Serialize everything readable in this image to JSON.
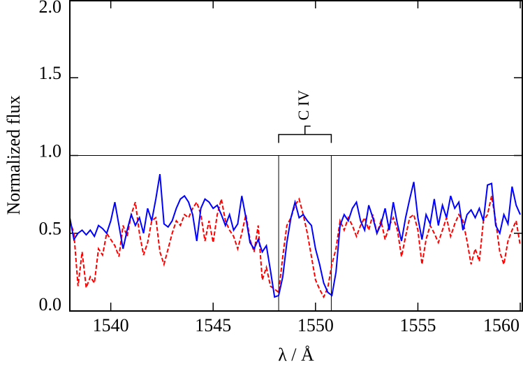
{
  "chart_data": {
    "type": "line",
    "xlabel": "λ / Å",
    "ylabel": "Normalized flux",
    "xlim": [
      1538,
      1560.1
    ],
    "ylim": [
      0,
      2
    ],
    "xticks": [
      1540,
      1545,
      1550,
      1555,
      1560
    ],
    "yticks": [
      {
        "value": 0,
        "label": "0.0"
      },
      {
        "value": 0.5,
        "label": "0.5"
      },
      {
        "value": 1,
        "label": "1.0"
      },
      {
        "value": 1.5,
        "label": "1.5"
      },
      {
        "value": 2,
        "label": "2.0"
      }
    ],
    "hline": 1.0,
    "annotations": [
      {
        "text": "C IV",
        "x": [
          1548.2,
          1550.77
        ]
      }
    ],
    "x": [
      1538,
      1538.2,
      1538.4,
      1538.6,
      1538.8,
      1539,
      1539.2,
      1539.4,
      1539.6,
      1539.8,
      1540,
      1540.2,
      1540.4,
      1540.6,
      1540.8,
      1541,
      1541.2,
      1541.4,
      1541.6,
      1541.8,
      1542,
      1542.2,
      1542.4,
      1542.6,
      1542.8,
      1543,
      1543.2,
      1543.4,
      1543.6,
      1543.8,
      1544,
      1544.2,
      1544.4,
      1544.6,
      1544.8,
      1545,
      1545.2,
      1545.4,
      1545.6,
      1545.8,
      1546,
      1546.2,
      1546.4,
      1546.6,
      1546.8,
      1547,
      1547.2,
      1547.4,
      1547.6,
      1547.8,
      1548,
      1548.2,
      1548.4,
      1548.6,
      1548.8,
      1549,
      1549.2,
      1549.4,
      1549.6,
      1549.8,
      1550,
      1550.2,
      1550.4,
      1550.6,
      1550.8,
      1551,
      1551.2,
      1551.4,
      1551.6,
      1551.8,
      1552,
      1552.2,
      1552.4,
      1552.6,
      1552.8,
      1553,
      1553.2,
      1553.4,
      1553.6,
      1553.8,
      1554,
      1554.2,
      1554.4,
      1554.6,
      1554.8,
      1555,
      1555.2,
      1555.4,
      1555.6,
      1555.8,
      1556,
      1556.2,
      1556.4,
      1556.6,
      1556.8,
      1557,
      1557.2,
      1557.4,
      1557.6,
      1557.8,
      1558,
      1558.2,
      1558.4,
      1558.6,
      1558.8,
      1559,
      1559.2,
      1559.4,
      1559.6,
      1559.8,
      1560
    ],
    "series": [
      {
        "color": "#0000ff",
        "dash": false,
        "values": [
          0.6,
          0.46,
          0.5,
          0.52,
          0.49,
          0.52,
          0.48,
          0.55,
          0.53,
          0.5,
          0.58,
          0.7,
          0.55,
          0.4,
          0.52,
          0.62,
          0.55,
          0.6,
          0.5,
          0.66,
          0.58,
          0.72,
          0.88,
          0.56,
          0.54,
          0.58,
          0.66,
          0.72,
          0.74,
          0.7,
          0.62,
          0.45,
          0.66,
          0.72,
          0.7,
          0.66,
          0.68,
          0.62,
          0.55,
          0.62,
          0.52,
          0.56,
          0.74,
          0.6,
          0.44,
          0.4,
          0.46,
          0.38,
          0.42,
          0.26,
          0.09,
          0.1,
          0.22,
          0.44,
          0.6,
          0.7,
          0.6,
          0.62,
          0.58,
          0.55,
          0.4,
          0.3,
          0.18,
          0.12,
          0.1,
          0.25,
          0.55,
          0.62,
          0.58,
          0.66,
          0.7,
          0.58,
          0.52,
          0.68,
          0.6,
          0.5,
          0.56,
          0.66,
          0.52,
          0.7,
          0.56,
          0.45,
          0.6,
          0.72,
          0.83,
          0.6,
          0.46,
          0.62,
          0.56,
          0.72,
          0.55,
          0.68,
          0.6,
          0.74,
          0.66,
          0.7,
          0.52,
          0.62,
          0.65,
          0.6,
          0.66,
          0.58,
          0.81,
          0.82,
          0.55,
          0.5,
          0.62,
          0.56,
          0.8,
          0.68,
          0.62
        ]
      },
      {
        "color": "#ff0000",
        "dash": true,
        "values": [
          0.58,
          0.5,
          0.16,
          0.38,
          0.15,
          0.22,
          0.18,
          0.4,
          0.36,
          0.5,
          0.46,
          0.42,
          0.35,
          0.55,
          0.48,
          0.62,
          0.7,
          0.5,
          0.36,
          0.44,
          0.58,
          0.6,
          0.38,
          0.3,
          0.4,
          0.5,
          0.58,
          0.55,
          0.62,
          0.6,
          0.66,
          0.7,
          0.62,
          0.45,
          0.58,
          0.44,
          0.62,
          0.72,
          0.58,
          0.52,
          0.48,
          0.4,
          0.5,
          0.62,
          0.46,
          0.38,
          0.55,
          0.2,
          0.28,
          0.16,
          0.14,
          0.12,
          0.35,
          0.55,
          0.6,
          0.68,
          0.72,
          0.62,
          0.5,
          0.35,
          0.2,
          0.14,
          0.09,
          0.15,
          0.3,
          0.4,
          0.58,
          0.52,
          0.6,
          0.55,
          0.48,
          0.55,
          0.6,
          0.52,
          0.62,
          0.5,
          0.58,
          0.46,
          0.55,
          0.6,
          0.52,
          0.35,
          0.48,
          0.6,
          0.62,
          0.52,
          0.3,
          0.46,
          0.55,
          0.5,
          0.44,
          0.52,
          0.6,
          0.48,
          0.56,
          0.62,
          0.58,
          0.45,
          0.3,
          0.4,
          0.32,
          0.58,
          0.62,
          0.74,
          0.58,
          0.38,
          0.3,
          0.45,
          0.52,
          0.58,
          0.42
        ]
      }
    ]
  }
}
